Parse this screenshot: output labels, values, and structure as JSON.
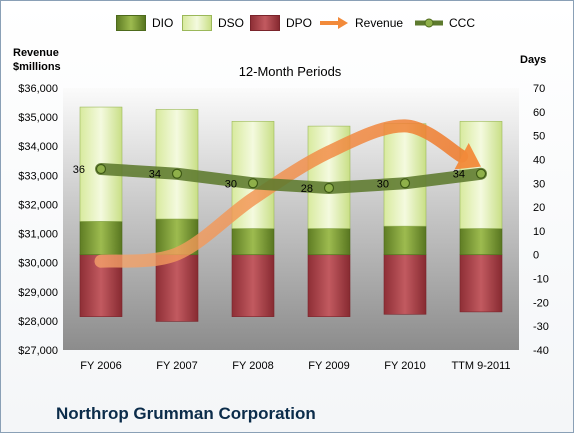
{
  "chart_data": {
    "type": "bar",
    "title": "12-Month Periods",
    "categories": [
      "FY 2006",
      "FY 2007",
      "FY 2008",
      "FY 2009",
      "FY 2010",
      "TTM 9-2011"
    ],
    "left_axis": {
      "label_line1": "Revenue",
      "label_line2": "$millions",
      "ylim": [
        27000,
        36000
      ],
      "ticks": [
        "$27,000",
        "$28,000",
        "$29,000",
        "$30,000",
        "$31,000",
        "$32,000",
        "$33,000",
        "$34,000",
        "$35,000",
        "$36,000"
      ]
    },
    "right_axis": {
      "label": "Days",
      "ylim": [
        -40,
        70
      ],
      "ticks": [
        "-40",
        "-30",
        "-20",
        "-10",
        "0",
        "10",
        "20",
        "30",
        "40",
        "50",
        "60",
        "70"
      ]
    },
    "series": [
      {
        "name": "DIO",
        "kind": "stacked-bar",
        "axis": "days",
        "values": [
          14,
          15,
          11,
          11,
          12,
          11
        ]
      },
      {
        "name": "DSO",
        "kind": "stacked-bar",
        "axis": "days",
        "values": [
          48,
          46,
          45,
          43,
          43,
          45
        ]
      },
      {
        "name": "DPO",
        "kind": "negative-bar",
        "axis": "days",
        "values": [
          -26,
          -28,
          -26,
          -26,
          -25,
          -24
        ]
      },
      {
        "name": "Revenue",
        "kind": "arrow-line",
        "axis": "revenue",
        "values": [
          30050,
          30300,
          32200,
          33800,
          34700,
          33300
        ]
      },
      {
        "name": "CCC",
        "kind": "line",
        "axis": "days",
        "values": [
          36,
          34,
          30,
          28,
          30,
          34
        ],
        "labels": [
          "36",
          "34",
          "30",
          "28",
          "30",
          "34"
        ]
      }
    ],
    "colors": {
      "DIO": "#7a9a3a",
      "DSO": "#e6f2c6",
      "DPO": "#b0474e",
      "Revenue": "#f28a3a",
      "CCC": "#5d7a2e",
      "plot_bg_top": "#fbfbfb",
      "plot_bg_bottom": "#8c8c8c"
    },
    "grid": false,
    "legend_position": "top"
  },
  "footer": {
    "title": "Northrop Grumman Corporation"
  }
}
